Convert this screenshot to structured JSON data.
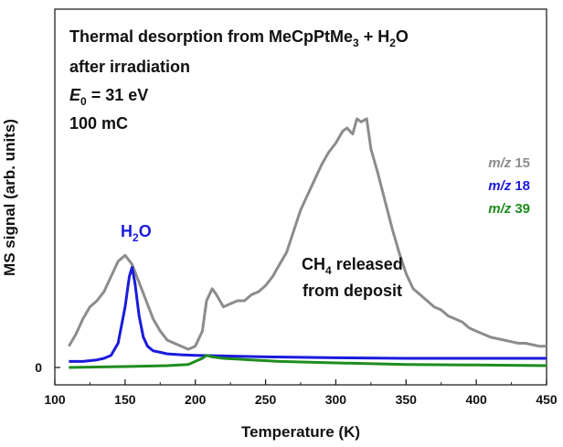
{
  "chart_data": {
    "type": "line",
    "title_lines": [
      "Thermal desorption from MeCpPtMe",
      "after irradiation",
      "E",
      "100 mC"
    ],
    "title_parts": {
      "line1_main": "Thermal desorption from MeCpPtMe",
      "line1_sub": "3",
      "line1_tail": " + H",
      "line1_sub2": "2",
      "line1_end": "O",
      "line2": "after irradiation",
      "line3_italic": "E",
      "line3_sub": "0",
      "line3_tail": " = 31 eV",
      "line4": "100 mC"
    },
    "xlabel": "Temperature (K)",
    "ylabel": "MS signal (arb. units)",
    "xlim": [
      100,
      450
    ],
    "ylim": [
      0,
      100
    ],
    "x_ticks": [
      "100",
      "150",
      "200",
      "250",
      "300",
      "350",
      "400",
      "450"
    ],
    "y_ticks": [
      "0"
    ],
    "grid": false,
    "legend_position": "right",
    "legend": [
      {
        "prefix": "m/z",
        "value": "15",
        "color": "#8c8c8c"
      },
      {
        "prefix": "m/z",
        "value": "18",
        "color": "#1a1adc"
      },
      {
        "prefix": "m/z",
        "value": "39",
        "color": "#1e8c1e"
      }
    ],
    "annotations": {
      "h2o": {
        "main": "H",
        "sub": "2",
        "tail": "O",
        "color": "#1a1adc"
      },
      "ch4_line1": {
        "main": "CH",
        "sub": "4",
        "tail": " released"
      },
      "ch4_line2": "from deposit"
    },
    "series": [
      {
        "name": "m/z 15",
        "color": "#8c8c8c",
        "x": [
          110,
          115,
          120,
          125,
          130,
          135,
          140,
          145,
          150,
          155,
          160,
          165,
          170,
          175,
          180,
          185,
          190,
          195,
          200,
          205,
          208,
          212,
          215,
          220,
          225,
          230,
          235,
          240,
          245,
          250,
          255,
          260,
          265,
          270,
          275,
          280,
          285,
          290,
          295,
          300,
          305,
          308,
          312,
          315,
          318,
          322,
          325,
          330,
          335,
          340,
          345,
          350,
          355,
          360,
          365,
          370,
          375,
          380,
          385,
          390,
          395,
          400,
          405,
          410,
          415,
          420,
          425,
          430,
          435,
          440,
          445,
          450
        ],
        "y": [
          7,
          11,
          16,
          20,
          22,
          25,
          30,
          35,
          37,
          34,
          28,
          22,
          16,
          12,
          9,
          8,
          7,
          6,
          7,
          12,
          22,
          26,
          24,
          20,
          21,
          22,
          22,
          24,
          25,
          27,
          30,
          34,
          38,
          45,
          52,
          57,
          62,
          67,
          71,
          74,
          78,
          79,
          77,
          82,
          81,
          82,
          72,
          64,
          55,
          46,
          38,
          31,
          26,
          24,
          22,
          20,
          19,
          17,
          16,
          15,
          13,
          12,
          11,
          10,
          9.5,
          9,
          8.5,
          8,
          8,
          7.5,
          7,
          7
        ]
      },
      {
        "name": "m/z 18",
        "color": "#1a1adc",
        "x": [
          110,
          120,
          130,
          135,
          140,
          145,
          150,
          153,
          155,
          157,
          160,
          163,
          166,
          170,
          175,
          180,
          190,
          200,
          220,
          250,
          300,
          350,
          400,
          450
        ],
        "y": [
          2,
          2,
          2.5,
          3,
          4,
          8,
          20,
          30,
          33,
          28,
          17,
          10,
          7,
          5.5,
          5,
          4.5,
          4.2,
          4,
          3.8,
          3.5,
          3.2,
          3,
          3,
          3
        ]
      },
      {
        "name": "m/z 39",
        "color": "#1e8c1e",
        "x": [
          110,
          150,
          180,
          195,
          200,
          205,
          208,
          212,
          220,
          240,
          260,
          300,
          350,
          400,
          450
        ],
        "y": [
          0,
          0.3,
          0.6,
          1,
          2,
          3,
          4,
          3.5,
          3,
          2.5,
          2,
          1.5,
          1,
          0.8,
          0.6
        ]
      }
    ]
  }
}
